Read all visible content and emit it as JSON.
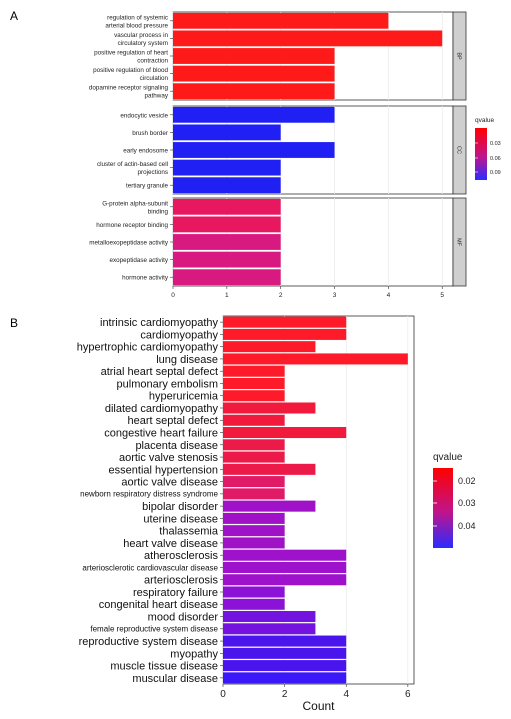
{
  "panel_labels": {
    "a": "A",
    "b": "B"
  },
  "chart_data": [
    {
      "type": "bar",
      "orientation": "horizontal",
      "panel": "A",
      "title": "",
      "xlabel": "",
      "xlim": [
        0,
        5.2
      ],
      "xticks": [
        0,
        1,
        2,
        3,
        4,
        5
      ],
      "grid": true,
      "legend": {
        "title": "qvalue",
        "placement": "right",
        "ticks": [
          "0.03",
          "0.06",
          "0.09"
        ],
        "low_color": "#ff0000",
        "high_color": "#2b2bff"
      },
      "facets": [
        {
          "strip": "BP",
          "categories": [
            [
              "regulation of systemic",
              "arterial blood pressure"
            ],
            [
              "vascular process in",
              "circulatory system"
            ],
            [
              "positive regulation of heart",
              "contraction"
            ],
            [
              "positive regulation of blood",
              "circulation"
            ],
            [
              "dopamine receptor signaling",
              "pathway"
            ]
          ],
          "values": [
            4,
            5,
            3,
            3,
            3
          ],
          "colors": [
            "#ff1a1a",
            "#ff1a1a",
            "#ff1a1a",
            "#ff1a1a",
            "#ff1a1a"
          ]
        },
        {
          "strip": "CC",
          "categories": [
            [
              "endocytic vesicle"
            ],
            [
              "brush border"
            ],
            [
              "early endosome"
            ],
            [
              "cluster of actin-based cell",
              "projections"
            ],
            [
              "tertiary granule"
            ]
          ],
          "values": [
            3,
            2,
            3,
            2,
            2
          ],
          "colors": [
            "#2020f5",
            "#2020f5",
            "#2020f5",
            "#2020f5",
            "#2020f5"
          ]
        },
        {
          "strip": "MF",
          "categories": [
            [
              "G-protein alpha-subunit",
              "binding"
            ],
            [
              "hormone receptor binding"
            ],
            [
              "metalloexopeptidase activity"
            ],
            [
              "exopeptidase activity"
            ],
            [
              "hormone activity"
            ]
          ],
          "values": [
            2,
            2,
            2,
            2,
            2
          ],
          "colors": [
            "#e81860",
            "#e81860",
            "#d81a80",
            "#d81a80",
            "#d81a80"
          ]
        }
      ]
    },
    {
      "type": "bar",
      "orientation": "horizontal",
      "panel": "B",
      "title": "",
      "xlabel": "Count",
      "xlim": [
        0,
        6.2
      ],
      "xticks": [
        0,
        2,
        4,
        6
      ],
      "grid": true,
      "legend": {
        "title": "qvalue",
        "placement": "right",
        "ticks": [
          "0.02",
          "0.03",
          "0.04"
        ],
        "low_color": "#ff0000",
        "high_color": "#2b2bff"
      },
      "categories": [
        "intrinsic cardiomyopathy",
        "cardiomyopathy",
        "hypertrophic cardiomyopathy",
        "lung disease",
        "atrial heart septal defect",
        "pulmonary embolism",
        "hyperuricemia",
        "dilated cardiomyopathy",
        "heart septal defect",
        "congestive heart failure",
        "placenta disease",
        "aortic valve stenosis",
        "essential hypertension",
        "aortic valve disease",
        "newborn respiratory distress syndrome",
        "bipolar disorder",
        "uterine disease",
        "thalassemia",
        "heart valve disease",
        "atherosclerosis",
        "arteriosclerotic cardiovascular disease",
        "arteriosclerosis",
        "respiratory failure",
        "congenital heart disease",
        "mood disorder",
        "female reproductive system disease",
        "reproductive system disease",
        "myopathy",
        "muscle tissue disease",
        "muscular disease"
      ],
      "values": [
        4,
        4,
        3,
        6,
        2,
        2,
        2,
        3,
        2,
        4,
        2,
        2,
        3,
        2,
        2,
        3,
        2,
        2,
        2,
        4,
        4,
        4,
        2,
        2,
        3,
        3,
        4,
        4,
        4,
        4
      ],
      "colors": [
        "#ff1a2a",
        "#ff1a2a",
        "#ff1a2a",
        "#ff1a2a",
        "#ff1a2a",
        "#ff1a2a",
        "#ff1a2a",
        "#f21a3c",
        "#f21a3c",
        "#f21a3c",
        "#ec1a48",
        "#ec1a48",
        "#ec1a48",
        "#e01a66",
        "#e01a66",
        "#a012c8",
        "#a012c8",
        "#a012c8",
        "#a012c8",
        "#9e12cc",
        "#9e12cc",
        "#9e12cc",
        "#8c12d8",
        "#8c12d8",
        "#7412e0",
        "#7412e0",
        "#4a14ec",
        "#4a14ec",
        "#4a14ec",
        "#3a18f8"
      ]
    }
  ]
}
